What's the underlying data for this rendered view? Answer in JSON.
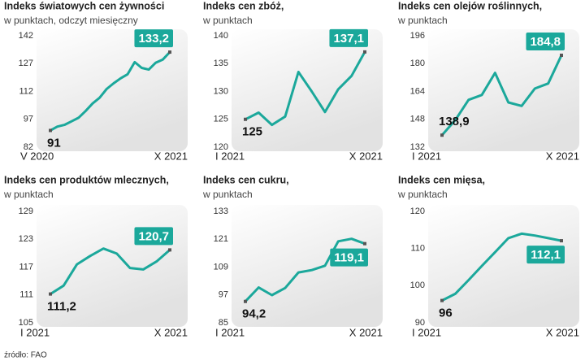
{
  "chart_data": [
    {
      "type": "line",
      "title": "Indeks światowych cen żywności",
      "subtitle": "w punktach, odczyt miesięczny",
      "categories": [
        "V 2020",
        null,
        null,
        null,
        null,
        null,
        null,
        null,
        null,
        null,
        null,
        null,
        null,
        null,
        null,
        null,
        null,
        "X 2021"
      ],
      "values": [
        91,
        93.1,
        94,
        95.9,
        97.8,
        101.4,
        105.5,
        108.6,
        113.3,
        116.4,
        119.1,
        121.3,
        127.8,
        124.7,
        123.8,
        127.5,
        129.2,
        133.2
      ],
      "value_labels": [
        "91",
        null,
        null,
        null,
        null,
        null,
        null,
        null,
        null,
        null,
        null,
        null,
        null,
        null,
        null,
        null,
        null,
        "133,2"
      ],
      "color": "#1ba89b",
      "ylim": [
        82,
        142
      ],
      "yticks": [
        82,
        97,
        112,
        127,
        142
      ]
    },
    {
      "type": "line",
      "title": "Indeks cen zbóż,",
      "subtitle": "w punktach",
      "categories": [
        "I 2021",
        null,
        null,
        null,
        null,
        null,
        null,
        null,
        null,
        "X 2021"
      ],
      "values": [
        125,
        126.2,
        124,
        125.5,
        133.5,
        130,
        126.3,
        130.4,
        132.8,
        137.1
      ],
      "value_labels": [
        "125",
        null,
        null,
        null,
        null,
        null,
        null,
        null,
        null,
        "137,1"
      ],
      "color": "#1ba89b",
      "ylim": [
        120,
        140
      ],
      "yticks": [
        120,
        125,
        130,
        135,
        140
      ]
    },
    {
      "type": "line",
      "title": "Indeks cen olejów roślinnych,",
      "subtitle": "w punktach",
      "categories": [
        "I 2021",
        null,
        null,
        null,
        null,
        null,
        null,
        null,
        null,
        "X 2021"
      ],
      "values": [
        138.9,
        147.5,
        159.2,
        162,
        174.7,
        157.7,
        155.7,
        165.7,
        168.6,
        184.8
      ],
      "value_labels": [
        "138,9",
        null,
        null,
        null,
        null,
        null,
        null,
        null,
        null,
        "184,8"
      ],
      "color": "#1ba89b",
      "ylim": [
        132,
        196
      ],
      "yticks": [
        132,
        148,
        164,
        180,
        196
      ]
    },
    {
      "type": "line",
      "title": "Indeks cen produktów mlecznych,",
      "subtitle": "w punktach",
      "categories": [
        "I 2021",
        null,
        null,
        null,
        null,
        null,
        null,
        null,
        null,
        "X 2021"
      ],
      "values": [
        111.2,
        113,
        117.6,
        119.4,
        121,
        119.9,
        116.8,
        116.5,
        118.2,
        120.7
      ],
      "value_labels": [
        "111,2",
        null,
        null,
        null,
        null,
        null,
        null,
        null,
        null,
        "120,7"
      ],
      "color": "#1ba89b",
      "ylim": [
        105,
        129
      ],
      "yticks": [
        105,
        111,
        117,
        123,
        129
      ]
    },
    {
      "type": "line",
      "title": "Indeks cen cukru,",
      "subtitle": "w punktach",
      "categories": [
        "I 2021",
        null,
        null,
        null,
        null,
        null,
        null,
        null,
        null,
        "X 2021"
      ],
      "values": [
        94.2,
        100.2,
        96.9,
        100,
        106.7,
        107.7,
        109.6,
        120.1,
        121.2,
        119.1
      ],
      "value_labels": [
        "94,2",
        null,
        null,
        null,
        null,
        null,
        null,
        null,
        null,
        "119,1"
      ],
      "color": "#1ba89b",
      "ylim": [
        85,
        133
      ],
      "yticks": [
        85,
        97,
        109,
        121,
        133
      ]
    },
    {
      "type": "line",
      "title": "Indeks cen mięsa,",
      "subtitle": "w punktach",
      "categories": [
        "I 2021",
        null,
        null,
        null,
        null,
        null,
        null,
        null,
        null,
        "X 2021"
      ],
      "values": [
        96,
        97.8,
        101.5,
        105.3,
        109,
        112.8,
        114,
        113.5,
        112.8,
        112.1
      ],
      "value_labels": [
        "96",
        null,
        null,
        null,
        null,
        null,
        null,
        null,
        null,
        "112,1"
      ],
      "color": "#1ba89b",
      "ylim": [
        90,
        120
      ],
      "yticks": [
        90,
        100,
        110,
        120
      ]
    }
  ],
  "source": "źródło: FAO"
}
